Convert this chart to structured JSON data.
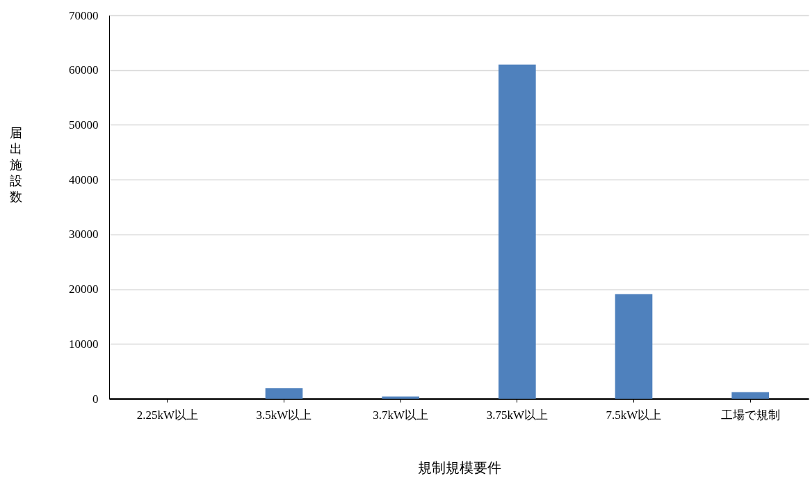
{
  "chart_data": {
    "type": "bar",
    "xlabel": "規制規模要件",
    "ylabel": "届出施設数",
    "categories": [
      "2.25kW以上",
      "3.5kW以上",
      "3.7kW以上",
      "3.75kW以上",
      "7.5kW以上",
      "工場で規制"
    ],
    "values": [
      0,
      1900,
      400,
      61000,
      19100,
      1200
    ],
    "color": "#4f81bd",
    "ylim": [
      0,
      70000
    ],
    "yticks": [
      0,
      10000,
      20000,
      30000,
      40000,
      50000,
      60000,
      70000
    ],
    "grid": "y"
  }
}
